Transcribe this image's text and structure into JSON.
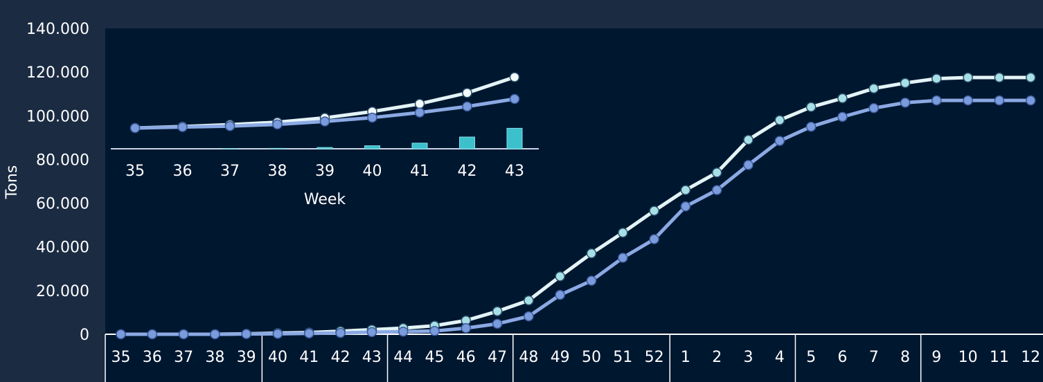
{
  "colors": {
    "page_background": "#1a2b42",
    "plot_background": "#001730",
    "axis_text": "#ffffff",
    "series_1_line": "#e4f4f6",
    "series_1_marker": "#a7dfe6",
    "series_2_line": "#8ba9e3",
    "series_2_marker": "#7b9cdc",
    "inset_bar": "#3cc0cc"
  },
  "chart_data": [
    {
      "type": "line",
      "title": "",
      "ylabel": "Tons",
      "ylim": [
        0,
        140000
      ],
      "yticks": [
        0,
        20000,
        40000,
        60000,
        80000,
        100000,
        120000,
        140000
      ],
      "ytick_labels": [
        "0",
        "20.000",
        "40.000",
        "60.000",
        "80.000",
        "100.000",
        "120.000",
        "140.000"
      ],
      "grid": false,
      "categories": [
        "35",
        "36",
        "37",
        "38",
        "39",
        "40",
        "41",
        "42",
        "43",
        "44",
        "45",
        "46",
        "47",
        "48",
        "49",
        "50",
        "51",
        "52",
        "1",
        "2",
        "3",
        "4",
        "5",
        "6",
        "7",
        "8",
        "9",
        "10",
        "11",
        "12"
      ],
      "group_sizes": [
        5,
        4,
        4,
        5,
        4,
        4,
        4
      ],
      "series": [
        {
          "values": [
            0,
            0,
            0,
            0,
            200,
            500,
            800,
            1400,
            2100,
            2800,
            3900,
            6300,
            10500,
            15500,
            26500,
            37000,
            46500,
            56500,
            66000,
            74000,
            89000,
            98000,
            104000,
            108000,
            112500,
            115000,
            117000,
            117500,
            117500,
            117500
          ]
        },
        {
          "values": [
            0,
            0,
            0,
            0,
            100,
            200,
            400,
            600,
            1000,
            1200,
            1500,
            2800,
            4800,
            8200,
            18000,
            24500,
            35000,
            43500,
            58500,
            66000,
            77500,
            88500,
            95000,
            99500,
            103500,
            106000,
            107000,
            107000,
            107000,
            107000
          ]
        }
      ]
    },
    {
      "type": "line",
      "title": "",
      "xlabel": "Week",
      "categories": [
        "35",
        "36",
        "37",
        "38",
        "39",
        "40",
        "41",
        "42",
        "43"
      ],
      "series": [
        {
          "values": [
            0,
            60,
            140,
            240,
            420,
            680,
            1000,
            1450,
            2100
          ]
        },
        {
          "values": [
            0,
            40,
            80,
            150,
            270,
            430,
            640,
            890,
            1200
          ]
        }
      ],
      "bars": [
        0,
        0,
        5,
        10,
        30,
        70,
        130,
        270,
        470
      ]
    }
  ]
}
